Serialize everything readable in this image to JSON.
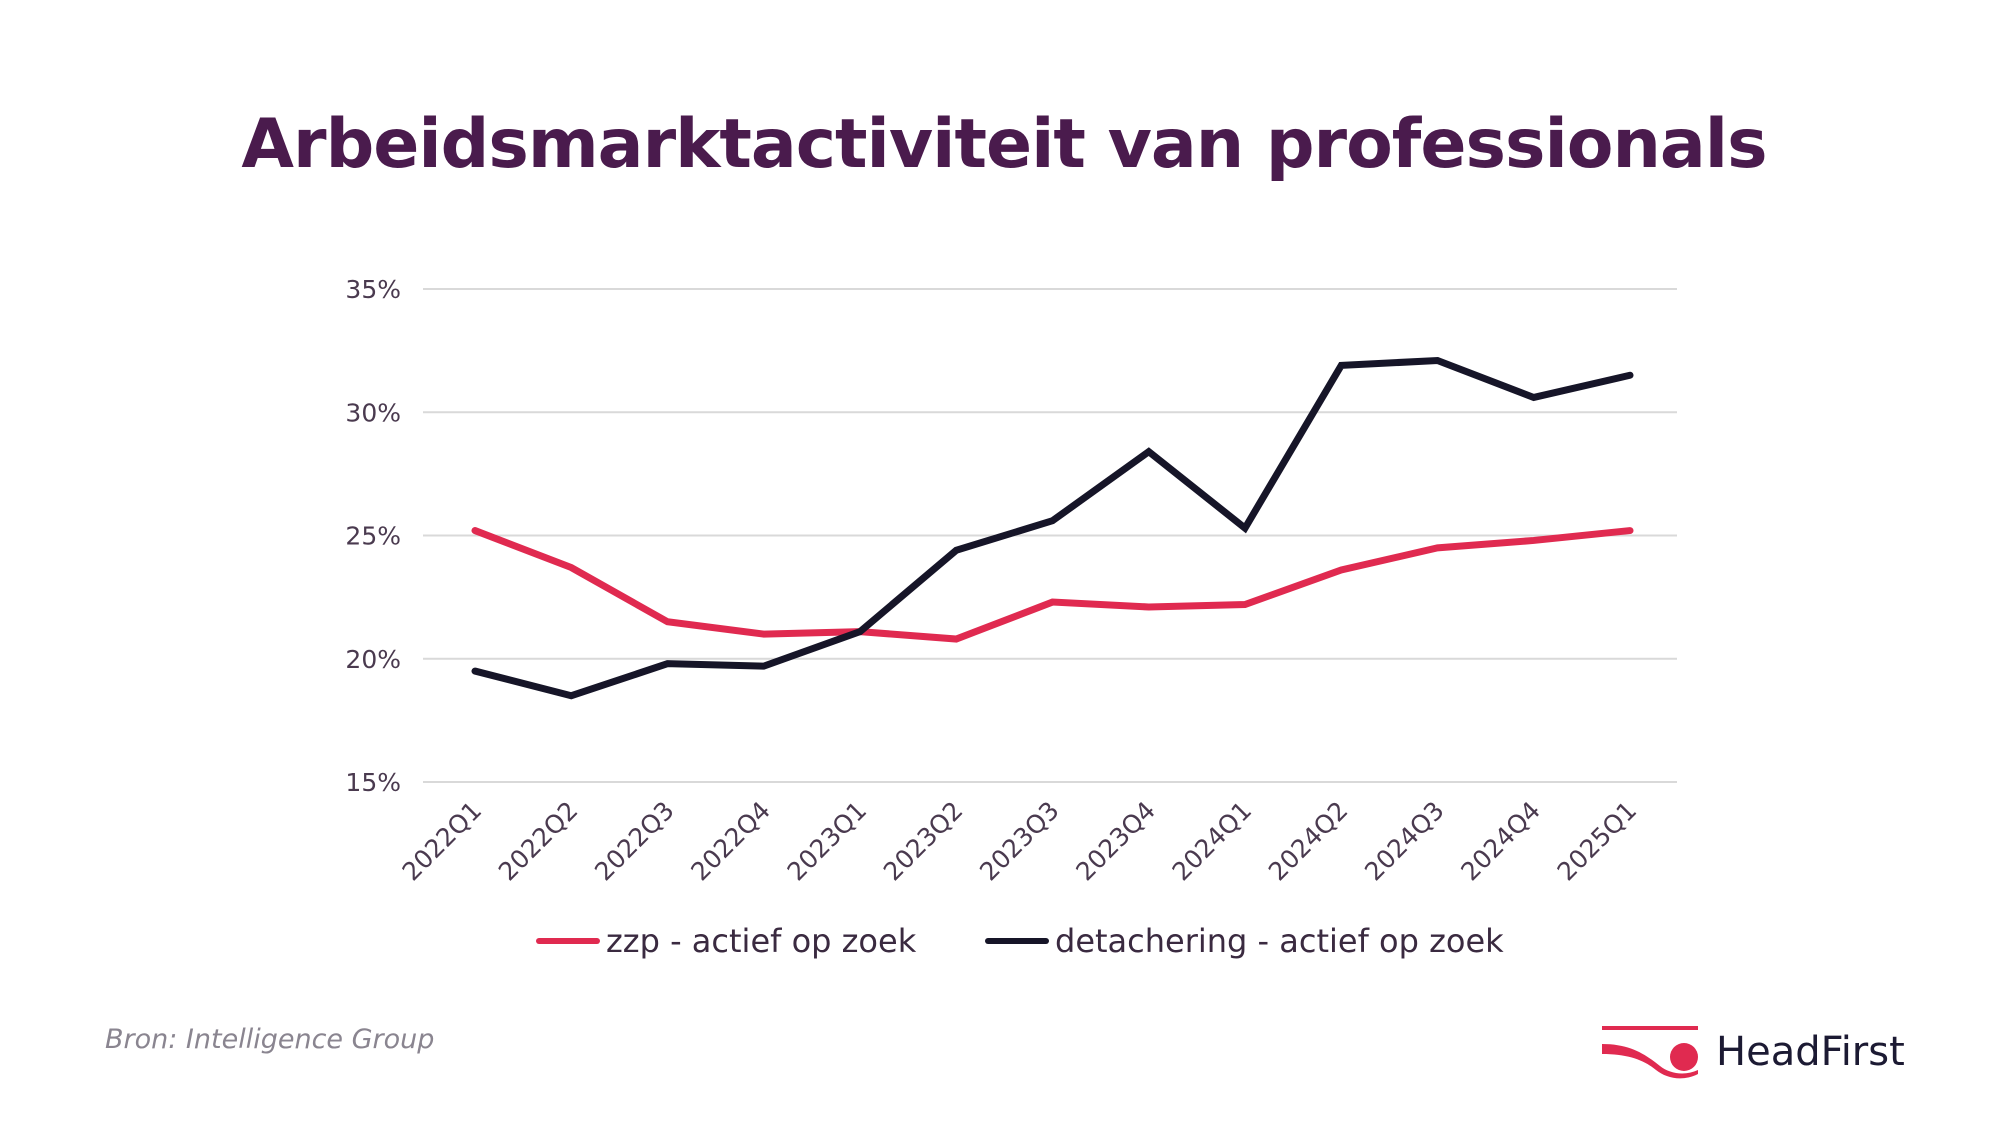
{
  "title": "Arbeidsmarktactiviteit van professionals",
  "source": "Bron: Intelligence Group",
  "logo": {
    "text": "HeadFirst",
    "color": "#e02a50"
  },
  "chart_data": {
    "type": "line",
    "title": "Arbeidsmarktactiviteit van professionals",
    "xlabel": "",
    "ylabel": "",
    "categories": [
      "2022Q1",
      "2022Q2",
      "2022Q3",
      "2022Q4",
      "2023Q1",
      "2023Q2",
      "2023Q3",
      "2023Q4",
      "2024Q1",
      "2024Q2",
      "2024Q3",
      "2024Q4",
      "2025Q1"
    ],
    "ylim": [
      15,
      35
    ],
    "yticks": [
      15,
      20,
      25,
      30,
      35
    ],
    "ytick_labels": [
      "15%",
      "20%",
      "25%",
      "30%",
      "35%"
    ],
    "grid": "horizontal",
    "legend": "bottom",
    "series": [
      {
        "name": "zzp - actief op zoek",
        "color": "#e02a50",
        "values": [
          25.2,
          23.7,
          21.5,
          21.0,
          21.1,
          20.8,
          22.3,
          22.1,
          22.2,
          23.6,
          24.5,
          24.8,
          25.2
        ]
      },
      {
        "name": "detachering - actief op zoek",
        "color": "#161528",
        "values": [
          19.5,
          18.5,
          19.8,
          19.7,
          21.1,
          24.4,
          25.6,
          28.4,
          25.3,
          31.9,
          32.1,
          30.6,
          31.5
        ]
      }
    ]
  }
}
